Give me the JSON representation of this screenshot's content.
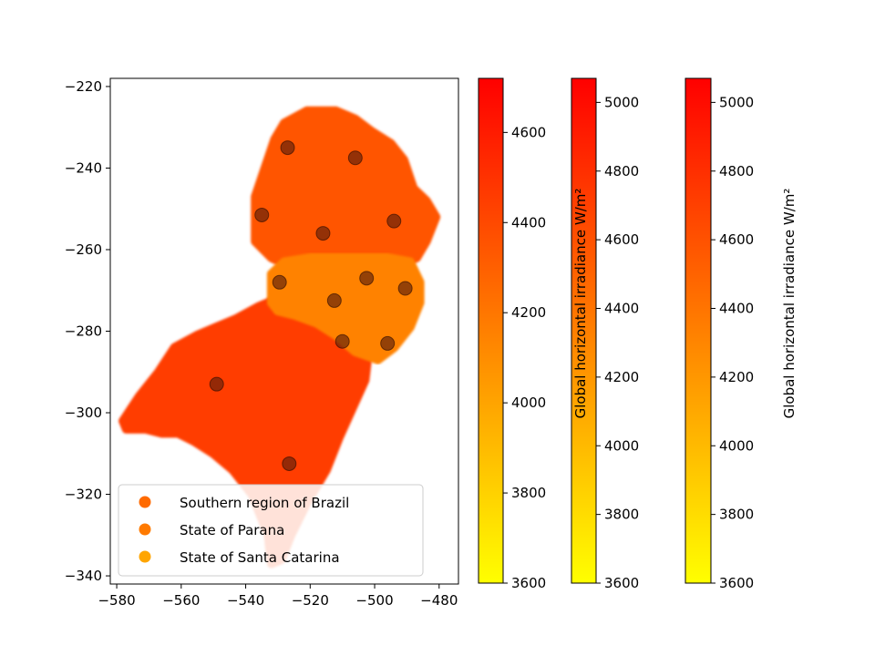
{
  "chart_data": {
    "type": "scatter",
    "title": "",
    "xlabel": "",
    "ylabel": "",
    "xlim": [
      -582,
      -474
    ],
    "ylim": [
      -342,
      -218
    ],
    "xticks": [
      -580,
      -560,
      -540,
      -520,
      -500,
      -480
    ],
    "yticks": [
      -220,
      -240,
      -260,
      -280,
      -300,
      -320,
      -340
    ],
    "grid": false,
    "legend": {
      "placement": "lower-left",
      "entries": [
        {
          "name": "Southern region of Brazil",
          "color": "#ff6a00"
        },
        {
          "name": "State of Parana",
          "color": "#ff7a00"
        },
        {
          "name": "State of Santa Catarina",
          "color": "#ffa500"
        }
      ]
    },
    "colormap": {
      "low": "#ffff00",
      "high": "#ff0000"
    },
    "series": [
      {
        "name": "Southern region of Brazil",
        "value_estimate": 4450,
        "region_outline": [
          [
            -578,
            -302
          ],
          [
            -573,
            -296
          ],
          [
            -567,
            -290
          ],
          [
            -562,
            -284
          ],
          [
            -555,
            -281
          ],
          [
            -549,
            -279
          ],
          [
            -543,
            -277
          ],
          [
            -536,
            -274
          ],
          [
            -530,
            -272
          ],
          [
            -523,
            -273
          ],
          [
            -516,
            -275
          ],
          [
            -509,
            -277
          ],
          [
            -504,
            -281
          ],
          [
            -502,
            -285
          ],
          [
            -503,
            -292
          ],
          [
            -507,
            -299
          ],
          [
            -511,
            -306
          ],
          [
            -515,
            -314
          ],
          [
            -521,
            -322
          ],
          [
            -526,
            -330
          ],
          [
            -529,
            -336
          ],
          [
            -532,
            -337
          ],
          [
            -533,
            -330
          ],
          [
            -538,
            -320
          ],
          [
            -544,
            -314
          ],
          [
            -550,
            -310
          ],
          [
            -556,
            -307
          ],
          [
            -561,
            -305
          ],
          [
            -566,
            -305
          ],
          [
            -571,
            -304
          ],
          [
            -577,
            -304
          ]
        ]
      },
      {
        "name": "State of Parana",
        "value_estimate": 4350,
        "region_outline": [
          [
            -537,
            -255
          ],
          [
            -537,
            -247
          ],
          [
            -534,
            -240
          ],
          [
            -531,
            -233
          ],
          [
            -528,
            -229
          ],
          [
            -521,
            -226
          ],
          [
            -512,
            -226
          ],
          [
            -506,
            -228
          ],
          [
            -501,
            -231
          ],
          [
            -495,
            -234
          ],
          [
            -491,
            -238
          ],
          [
            -488,
            -245
          ],
          [
            -484,
            -248
          ],
          [
            -481,
            -252
          ],
          [
            -484,
            -258
          ],
          [
            -487,
            -262
          ],
          [
            -496,
            -265
          ],
          [
            -506,
            -266
          ],
          [
            -515,
            -266
          ],
          [
            -524,
            -265
          ],
          [
            -532,
            -262
          ],
          [
            -537,
            -258
          ]
        ]
      },
      {
        "name": "State of Santa Catarina",
        "value_estimate": 4150,
        "region_outline": [
          [
            -532,
            -273
          ],
          [
            -532,
            -266
          ],
          [
            -528,
            -263
          ],
          [
            -520,
            -262
          ],
          [
            -512,
            -262
          ],
          [
            -504,
            -262
          ],
          [
            -496,
            -262
          ],
          [
            -489,
            -263
          ],
          [
            -486,
            -268
          ],
          [
            -486,
            -273
          ],
          [
            -489,
            -279
          ],
          [
            -494,
            -284
          ],
          [
            -499,
            -287
          ],
          [
            -506,
            -285
          ],
          [
            -512,
            -281
          ],
          [
            -518,
            -278
          ],
          [
            -525,
            -276
          ],
          [
            -530,
            -275
          ]
        ]
      }
    ],
    "highlight_points": [
      {
        "x": -527,
        "y": -235
      },
      {
        "x": -506,
        "y": -237.5
      },
      {
        "x": -535,
        "y": -251.5
      },
      {
        "x": -516,
        "y": -256
      },
      {
        "x": -494,
        "y": -253
      },
      {
        "x": -529.5,
        "y": -268
      },
      {
        "x": -502.5,
        "y": -267
      },
      {
        "x": -512.5,
        "y": -272.5
      },
      {
        "x": -490.5,
        "y": -269.5
      },
      {
        "x": -510,
        "y": -282.5
      },
      {
        "x": -496,
        "y": -283
      },
      {
        "x": -549,
        "y": -293
      },
      {
        "x": -526.5,
        "y": -312.5
      }
    ],
    "colorbars": [
      {
        "label": "",
        "range": [
          3600,
          4720
        ],
        "ticks": [
          3600,
          3800,
          4000,
          4200,
          4400,
          4600
        ]
      },
      {
        "label": "Global horizontal irradiance W/m²",
        "range": [
          3600,
          5070
        ],
        "ticks": [
          3600,
          3800,
          4000,
          4200,
          4400,
          4600,
          4800,
          5000
        ]
      },
      {
        "label": "Global horizontal irradiance W/m²",
        "range": [
          3600,
          5070
        ],
        "ticks": [
          3600,
          3800,
          4000,
          4200,
          4400,
          4600,
          4800,
          5000
        ]
      }
    ]
  }
}
